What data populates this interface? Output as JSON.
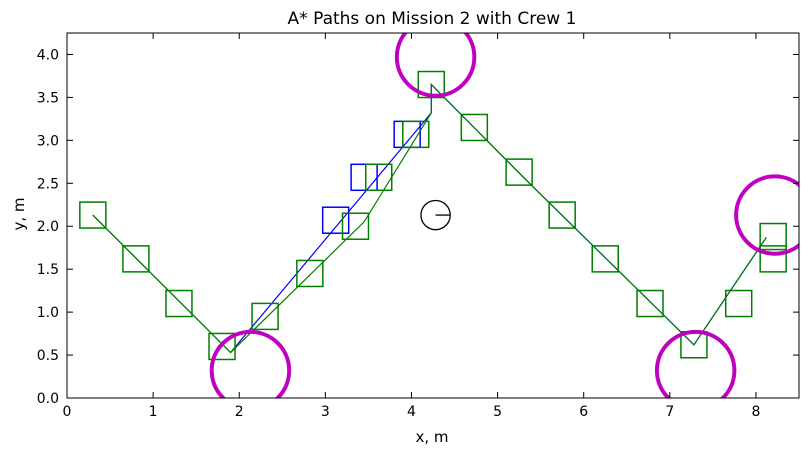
{
  "chart_data": {
    "type": "scatter",
    "title": "A* Paths on Mission 2 with Crew 1",
    "xlabel": "x, m",
    "ylabel": "y, m",
    "xlim": [
      0,
      8.5
    ],
    "ylim": [
      0,
      4.25
    ],
    "x_ticks": [
      "0",
      "1",
      "2",
      "3",
      "4",
      "5",
      "6",
      "7",
      "8"
    ],
    "y_ticks": [
      "0.0",
      "0.5",
      "1.0",
      "1.5",
      "2.0",
      "2.5",
      "3.0",
      "3.5",
      "4.0"
    ],
    "grid": false,
    "colors": {
      "blue": "#0000ff",
      "green": "#007f00",
      "dark_green": "#005f35",
      "magenta": "#bf00bf",
      "black": "#000000"
    },
    "series": [
      {
        "color": "blue",
        "line": [
          [
            0.3,
            2.13
          ],
          [
            1.9,
            0.53
          ],
          [
            4.23,
            3.32
          ],
          [
            4.23,
            3.65
          ],
          [
            5.35,
            2.52
          ],
          [
            7.28,
            0.62
          ],
          [
            8.12,
            1.87
          ]
        ],
        "squares": [
          [
            3.12,
            2.07
          ],
          [
            3.45,
            2.57
          ],
          [
            3.95,
            3.07
          ]
        ]
      },
      {
        "color": "green",
        "line": [
          [
            0.3,
            2.13
          ],
          [
            1.9,
            0.53
          ],
          [
            3.45,
            2.05
          ],
          [
            4.23,
            3.32
          ],
          [
            4.23,
            3.65
          ],
          [
            5.35,
            2.52
          ],
          [
            7.28,
            0.62
          ],
          [
            8.12,
            1.87
          ]
        ],
        "squares": [
          [
            0.3,
            2.13
          ],
          [
            0.8,
            1.62
          ],
          [
            1.3,
            1.1
          ],
          [
            1.8,
            0.6
          ],
          [
            2.3,
            0.95
          ],
          [
            2.82,
            1.45
          ],
          [
            3.35,
            2.0
          ],
          [
            3.62,
            2.57
          ],
          [
            4.05,
            3.07
          ],
          [
            4.23,
            3.65
          ],
          [
            4.73,
            3.15
          ],
          [
            5.25,
            2.63
          ],
          [
            5.75,
            2.13
          ],
          [
            6.25,
            1.62
          ],
          [
            6.77,
            1.1
          ],
          [
            7.28,
            0.62
          ],
          [
            7.8,
            1.1
          ],
          [
            8.2,
            1.62
          ],
          [
            8.2,
            1.88
          ]
        ]
      }
    ],
    "circles": [
      {
        "color": "magenta",
        "cx": 2.13,
        "cy": 0.32,
        "r": 0.45
      },
      {
        "color": "magenta",
        "cx": 4.28,
        "cy": 3.97,
        "r": 0.45
      },
      {
        "color": "magenta",
        "cx": 7.3,
        "cy": 0.32,
        "r": 0.45
      },
      {
        "color": "magenta",
        "cx": 8.22,
        "cy": 2.13,
        "r": 0.45
      },
      {
        "color": "black",
        "cx": 4.28,
        "cy": 2.13,
        "r": 0.17
      }
    ]
  }
}
